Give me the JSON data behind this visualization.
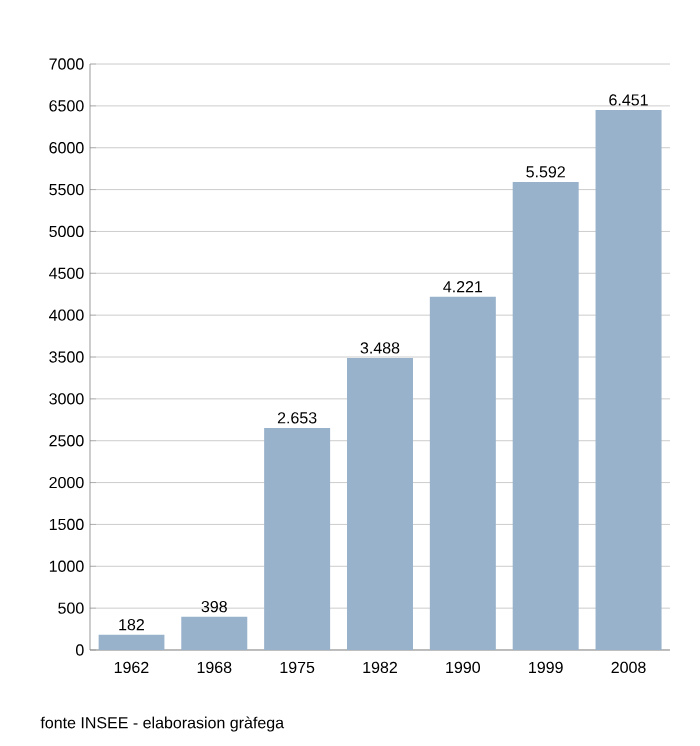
{
  "chart_data": {
    "type": "bar",
    "categories": [
      "1962",
      "1968",
      "1975",
      "1982",
      "1990",
      "1999",
      "2008"
    ],
    "values": [
      182,
      398,
      2653,
      3488,
      4221,
      5592,
      6451
    ],
    "value_labels": [
      "182",
      "398",
      "2.653",
      "3.488",
      "4.221",
      "5.592",
      "6.451"
    ],
    "color": "#98b2cc",
    "ylim": [
      0,
      7000
    ],
    "yticks": [
      0,
      500,
      1000,
      1500,
      2000,
      2500,
      3000,
      3500,
      4000,
      4500,
      5000,
      5500,
      6000,
      6500,
      7000
    ],
    "grid": "y",
    "annotations": [
      "fonte INSEE - elaborasion gràfega"
    ]
  }
}
